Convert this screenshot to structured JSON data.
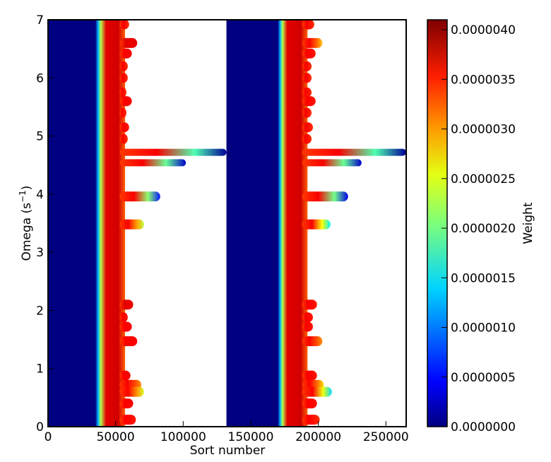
{
  "chart_data": {
    "type": "heatmap",
    "title": "",
    "xlabel": "Sort number",
    "ylabel": "Omega (s⁻¹)",
    "ylabel_base": "Omega (s",
    "ylabel_sup": "−1",
    "ylabel_close": ")",
    "xlim": [
      0,
      265000
    ],
    "ylim": [
      0,
      7
    ],
    "x_ticks": [
      0,
      50000,
      100000,
      150000,
      200000,
      250000
    ],
    "x_tick_labels": [
      "0",
      "50000",
      "100000",
      "150000",
      "200000",
      "250000"
    ],
    "y_ticks": [
      0,
      1,
      2,
      3,
      4,
      5,
      6,
      7
    ],
    "y_tick_labels": [
      "0",
      "1",
      "2",
      "3",
      "4",
      "5",
      "6",
      "7"
    ],
    "grid": false,
    "colormap": "jet",
    "colorbar": {
      "label": "Weight",
      "range": [
        0.0,
        4.1e-06
      ],
      "ticks": [
        0.0,
        5e-07,
        1e-06,
        1.5e-06,
        2e-06,
        2.5e-06,
        3e-06,
        3.5e-06,
        4e-06
      ],
      "tick_labels": [
        "0.0000000",
        "0.0000005",
        "0.0000010",
        "0.0000015",
        "0.0000020",
        "0.0000025",
        "0.0000030",
        "0.0000035",
        "0.0000040"
      ]
    },
    "blocks": [
      {
        "name": "block-1",
        "sort_start": 0,
        "blue_until": 35000,
        "gradient_end": 43000,
        "red_band_until": 52000,
        "base_edge": 57000,
        "spikes": [
          {
            "omega": 6.92,
            "extent": 60000,
            "tip_weight": 3.4e-06
          },
          {
            "omega": 6.6,
            "extent": 66000,
            "tip_weight": 3.7e-06
          },
          {
            "omega": 6.42,
            "extent": 62000,
            "tip_weight": 3.6e-06
          },
          {
            "omega": 6.2,
            "extent": 59000,
            "tip_weight": 3.4e-06
          },
          {
            "omega": 6.0,
            "extent": 59000,
            "tip_weight": 3.4e-06
          },
          {
            "omega": 5.75,
            "extent": 58000,
            "tip_weight": 3.4e-06
          },
          {
            "omega": 5.6,
            "extent": 62000,
            "tip_weight": 3.6e-06
          },
          {
            "omega": 5.4,
            "extent": 58000,
            "tip_weight": 3.4e-06
          },
          {
            "omega": 5.15,
            "extent": 60000,
            "tip_weight": 3.5e-06
          },
          {
            "omega": 4.95,
            "extent": 59000,
            "tip_weight": 3.4e-06
          },
          {
            "omega": 4.72,
            "extent": 132000,
            "tip_weight": 1e-07
          },
          {
            "omega": 4.54,
            "extent": 102000,
            "tip_weight": 3e-07
          },
          {
            "omega": 3.96,
            "extent": 83000,
            "tip_weight": 6e-07
          },
          {
            "omega": 3.48,
            "extent": 71000,
            "tip_weight": 2.3e-06
          },
          {
            "omega": 2.1,
            "extent": 63000,
            "tip_weight": 3.7e-06
          },
          {
            "omega": 1.88,
            "extent": 59000,
            "tip_weight": 3.5e-06
          },
          {
            "omega": 1.72,
            "extent": 62000,
            "tip_weight": 3.6e-06
          },
          {
            "omega": 1.47,
            "extent": 66000,
            "tip_weight": 3.6e-06
          },
          {
            "omega": 0.88,
            "extent": 61000,
            "tip_weight": 3.6e-06
          },
          {
            "omega": 0.72,
            "extent": 69000,
            "tip_weight": 3e-06
          },
          {
            "omega": 0.6,
            "extent": 71000,
            "tip_weight": 2.4e-06
          },
          {
            "omega": 0.4,
            "extent": 63000,
            "tip_weight": 3.6e-06
          },
          {
            "omega": 0.12,
            "extent": 65000,
            "tip_weight": 3.5e-06
          }
        ]
      },
      {
        "name": "block-2",
        "sort_start": 132000,
        "blue_until": 170000,
        "gradient_end": 177000,
        "red_band_until": 187000,
        "base_edge": 192000,
        "spikes": [
          {
            "omega": 6.92,
            "extent": 197000,
            "tip_weight": 3.4e-06
          },
          {
            "omega": 6.6,
            "extent": 203000,
            "tip_weight": 2.8e-06
          },
          {
            "omega": 6.42,
            "extent": 198000,
            "tip_weight": 3.5e-06
          },
          {
            "omega": 6.2,
            "extent": 195000,
            "tip_weight": 3.4e-06
          },
          {
            "omega": 6.0,
            "extent": 195000,
            "tip_weight": 3.4e-06
          },
          {
            "omega": 5.75,
            "extent": 195000,
            "tip_weight": 3.4e-06
          },
          {
            "omega": 5.6,
            "extent": 198000,
            "tip_weight": 3.5e-06
          },
          {
            "omega": 5.4,
            "extent": 195000,
            "tip_weight": 3.4e-06
          },
          {
            "omega": 5.15,
            "extent": 196000,
            "tip_weight": 3.4e-06
          },
          {
            "omega": 4.95,
            "extent": 195000,
            "tip_weight": 3.4e-06
          },
          {
            "omega": 4.72,
            "extent": 265000,
            "tip_weight": 1e-07
          },
          {
            "omega": 4.54,
            "extent": 232000,
            "tip_weight": 3e-07
          },
          {
            "omega": 3.96,
            "extent": 222000,
            "tip_weight": 4e-07
          },
          {
            "omega": 3.48,
            "extent": 209000,
            "tip_weight": 1.5e-06
          },
          {
            "omega": 2.1,
            "extent": 199000,
            "tip_weight": 3.5e-06
          },
          {
            "omega": 1.88,
            "extent": 196000,
            "tip_weight": 3.5e-06
          },
          {
            "omega": 1.72,
            "extent": 196000,
            "tip_weight": 3.5e-06
          },
          {
            "omega": 1.47,
            "extent": 203000,
            "tip_weight": 3e-06
          },
          {
            "omega": 0.88,
            "extent": 199000,
            "tip_weight": 3.5e-06
          },
          {
            "omega": 0.72,
            "extent": 204000,
            "tip_weight": 2.7e-06
          },
          {
            "omega": 0.6,
            "extent": 210000,
            "tip_weight": 1.4e-06
          },
          {
            "omega": 0.4,
            "extent": 199000,
            "tip_weight": 3.5e-06
          },
          {
            "omega": 0.12,
            "extent": 201000,
            "tip_weight": 3.4e-06
          }
        ]
      }
    ]
  }
}
